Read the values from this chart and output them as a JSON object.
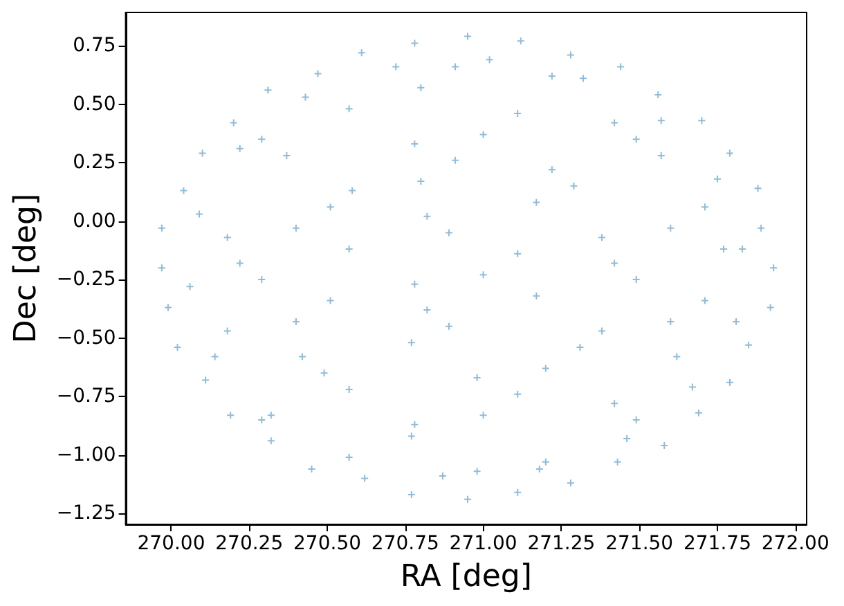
{
  "chart_data": {
    "type": "scatter",
    "xlabel": "RA [deg]",
    "ylabel": "Dec [deg]",
    "x": [
      271.93,
      271.89,
      271.88,
      271.79,
      271.7,
      271.56,
      271.44,
      271.28,
      271.12,
      270.95,
      270.78,
      270.61,
      270.47,
      270.31,
      270.2,
      270.1,
      270.04,
      269.97,
      269.97,
      269.99,
      270.02,
      270.11,
      270.19,
      270.32,
      270.45,
      270.62,
      270.77,
      270.95,
      271.11,
      271.28,
      271.43,
      271.58,
      271.69,
      271.79,
      271.85,
      271.92,
      270.8,
      270.91,
      271.22,
      270.29,
      270.57,
      270.78,
      271.0,
      271.11,
      271.42,
      271.49,
      270.37,
      270.58,
      270.8,
      270.91,
      271.22,
      271.29,
      271.57,
      270.18,
      270.4,
      270.51,
      270.82,
      270.89,
      271.17,
      271.38,
      271.6,
      271.71,
      270.22,
      270.29,
      270.57,
      270.78,
      271.0,
      271.11,
      271.42,
      271.49,
      271.77,
      270.18,
      270.4,
      270.51,
      270.82,
      270.89,
      271.17,
      271.38,
      271.6,
      271.71,
      270.42,
      270.49,
      270.77,
      270.98,
      271.2,
      271.31,
      271.62,
      270.29,
      270.57,
      270.78,
      271.0,
      271.11,
      271.42,
      271.49,
      270.77,
      270.98,
      271.2,
      271.83,
      271.75,
      271.57,
      271.32,
      271.02,
      270.72,
      270.43,
      270.22,
      270.09,
      270.06,
      270.14,
      270.32,
      270.57,
      270.87,
      271.18,
      271.46,
      271.67,
      271.81
    ],
    "values": [
      -0.2,
      -0.03,
      0.14,
      0.29,
      0.43,
      0.54,
      0.66,
      0.71,
      0.77,
      0.79,
      0.76,
      0.72,
      0.63,
      0.56,
      0.42,
      0.29,
      0.13,
      -0.03,
      -0.2,
      -0.37,
      -0.54,
      -0.68,
      -0.83,
      -0.94,
      -1.06,
      -1.1,
      -1.17,
      -1.19,
      -1.16,
      -1.12,
      -1.03,
      -0.96,
      -0.82,
      -0.69,
      -0.53,
      -0.37,
      0.57,
      0.66,
      0.62,
      0.35,
      0.48,
      0.33,
      0.37,
      0.46,
      0.42,
      0.35,
      0.28,
      0.13,
      0.17,
      0.26,
      0.22,
      0.15,
      0.28,
      -0.07,
      -0.03,
      0.06,
      0.02,
      -0.05,
      0.08,
      -0.07,
      -0.03,
      0.06,
      -0.18,
      -0.25,
      -0.12,
      -0.27,
      -0.23,
      -0.14,
      -0.18,
      -0.25,
      -0.12,
      -0.47,
      -0.43,
      -0.34,
      -0.38,
      -0.45,
      -0.32,
      -0.47,
      -0.43,
      -0.34,
      -0.58,
      -0.65,
      -0.52,
      -0.67,
      -0.63,
      -0.54,
      -0.58,
      -0.85,
      -0.72,
      -0.87,
      -0.83,
      -0.74,
      -0.78,
      -0.85,
      -0.92,
      -1.07,
      -1.03,
      -0.12,
      0.18,
      0.43,
      0.61,
      0.69,
      0.66,
      0.53,
      0.31,
      0.03,
      -0.28,
      -0.58,
      -0.83,
      -1.01,
      -1.09,
      -1.06,
      -0.93,
      -0.71,
      -0.43
    ],
    "color": "#8fbcdb",
    "marker": "cross",
    "grid": false,
    "xlim": [
      269.854,
      272.036
    ],
    "ylim": [
      -1.297,
      0.892
    ],
    "xticks": [
      {
        "value": 270,
        "label": "270.00"
      },
      {
        "value": 270.25,
        "label": "270.25"
      },
      {
        "value": 270.5,
        "label": "270.50"
      },
      {
        "value": 270.75,
        "label": "270.75"
      },
      {
        "value": 271,
        "label": "271.00"
      },
      {
        "value": 271.25,
        "label": "271.25"
      },
      {
        "value": 271.5,
        "label": "271.50"
      },
      {
        "value": 271.75,
        "label": "271.75"
      },
      {
        "value": 272,
        "label": "272.00"
      }
    ],
    "yticks": [
      {
        "value": -1.25,
        "label": "−1.25"
      },
      {
        "value": -1,
        "label": "−1.00"
      },
      {
        "value": -0.75,
        "label": "−0.75"
      },
      {
        "value": -0.5,
        "label": "−0.50"
      },
      {
        "value": -0.25,
        "label": "−0.25"
      },
      {
        "value": 0,
        "label": "0.00"
      },
      {
        "value": 0.25,
        "label": "0.25"
      },
      {
        "value": 0.5,
        "label": "0.50"
      },
      {
        "value": 0.75,
        "label": "0.75"
      }
    ]
  }
}
